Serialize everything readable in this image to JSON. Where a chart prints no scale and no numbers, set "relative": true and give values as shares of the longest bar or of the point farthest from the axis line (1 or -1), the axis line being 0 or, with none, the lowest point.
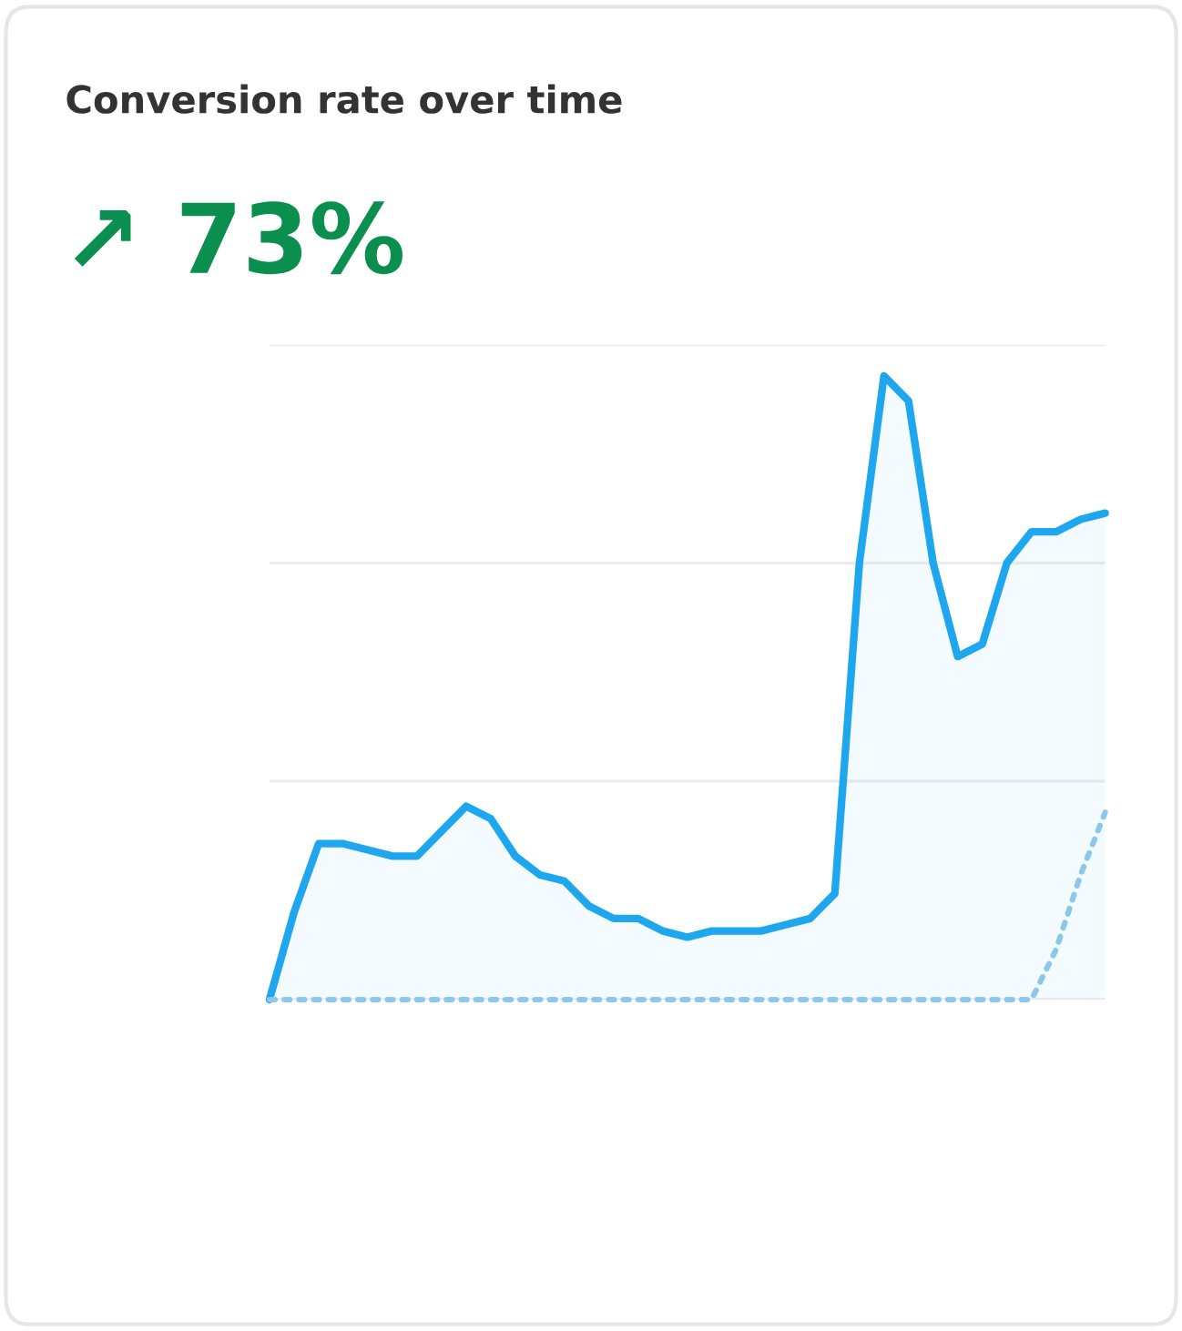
{
  "chart_data": {
    "type": "line",
    "title": "Conversion rate over time",
    "subtitle": "↗ 73%",
    "relative": true,
    "legend": false,
    "ref_lines": [
      {
        "axis": "y",
        "value": 0,
        "color": "#ececec"
      },
      {
        "axis": "y",
        "value": 0.35,
        "color": "#ececec"
      },
      {
        "axis": "y",
        "value": 0.7,
        "color": "#ececec"
      },
      {
        "axis": "y",
        "value": 1.05,
        "color": "#ececec"
      }
    ],
    "categories": [
      null,
      null,
      null,
      null,
      null,
      null,
      null,
      null,
      null,
      null,
      null,
      null,
      null,
      null,
      null,
      null,
      null,
      null,
      null,
      null,
      null,
      null,
      null,
      null,
      null,
      null,
      null,
      null,
      null,
      null,
      null,
      null,
      null,
      null,
      null
    ],
    "series": [
      {
        "type": "area",
        "color": "#1ea7ef",
        "line_style": "solid",
        "values": [
          0,
          0.14,
          0.25,
          0.25,
          0.24,
          0.23,
          0.23,
          0.27,
          0.31,
          0.29,
          0.23,
          0.2,
          0.19,
          0.15,
          0.13,
          0.13,
          0.11,
          0.1,
          0.11,
          0.11,
          0.11,
          0.12,
          0.13,
          0.17,
          0.7,
          1.0,
          0.96,
          0.7,
          0.55,
          0.57,
          0.7,
          0.75,
          0.75,
          0.77,
          0.78
        ]
      },
      {
        "color": "#8cc8ec",
        "line_style": "dotted",
        "values": [
          0,
          0,
          0,
          0,
          0,
          0,
          0,
          0,
          0,
          0,
          0,
          0,
          0,
          0,
          0,
          0,
          0,
          0,
          0,
          0,
          0,
          0,
          0,
          0,
          0,
          0,
          0,
          0,
          0,
          0,
          0,
          0,
          0.08,
          0.2,
          0.3
        ]
      }
    ]
  }
}
